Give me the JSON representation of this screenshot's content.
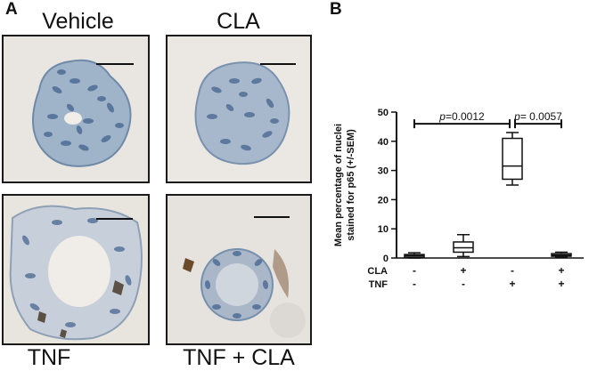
{
  "panel_a": {
    "letter": "A",
    "images": [
      {
        "title": "Vehicle",
        "content": "spheroid-blue-nuclei"
      },
      {
        "title": "CLA",
        "content": "spheroid-blue-nuclei"
      },
      {
        "title": "TNF",
        "content": "spheroid-brown-stained-nuclei"
      },
      {
        "title": "TNF + CLA",
        "content": "spheroid-blue-nuclei-few-brown"
      }
    ]
  },
  "panel_b": {
    "letter": "B"
  },
  "chart_data": {
    "type": "box",
    "ylabel": "Mean percentage of nuclei stained for p65 (+/-SEM)",
    "ylabel_lines": [
      "Mean percentage of nuclei",
      "stained for p65 (+/-SEM)"
    ],
    "ylim": [
      0,
      50
    ],
    "yticks": [
      0,
      10,
      20,
      30,
      40,
      50
    ],
    "row_labels": [
      "CLA",
      "TNF"
    ],
    "groups": [
      {
        "CLA": "-",
        "TNF": "-",
        "min": 0.0,
        "q1": 0.3,
        "median": 0.8,
        "q3": 1.2,
        "max": 1.8
      },
      {
        "CLA": "+",
        "TNF": "-",
        "min": 0.5,
        "q1": 2.0,
        "median": 3.5,
        "q3": 5.5,
        "max": 8.0
      },
      {
        "CLA": "-",
        "TNF": "+",
        "min": 25.0,
        "q1": 27.0,
        "median": 31.5,
        "q3": 41.0,
        "max": 43.0
      },
      {
        "CLA": "+",
        "TNF": "+",
        "min": 0.3,
        "q1": 0.6,
        "median": 1.0,
        "q3": 1.5,
        "max": 2.0
      }
    ],
    "comparisons": [
      {
        "from": 0,
        "to": 2,
        "p_symbol": "p",
        "p_value": "=0.0012",
        "y": 46
      },
      {
        "from": 2,
        "to": 3,
        "p_symbol": "p",
        "p_value": "= 0.0057",
        "y": 46
      }
    ],
    "colors": {
      "axis": "#111111",
      "box_fill": "#ffffff",
      "stroke": "#111111"
    }
  }
}
